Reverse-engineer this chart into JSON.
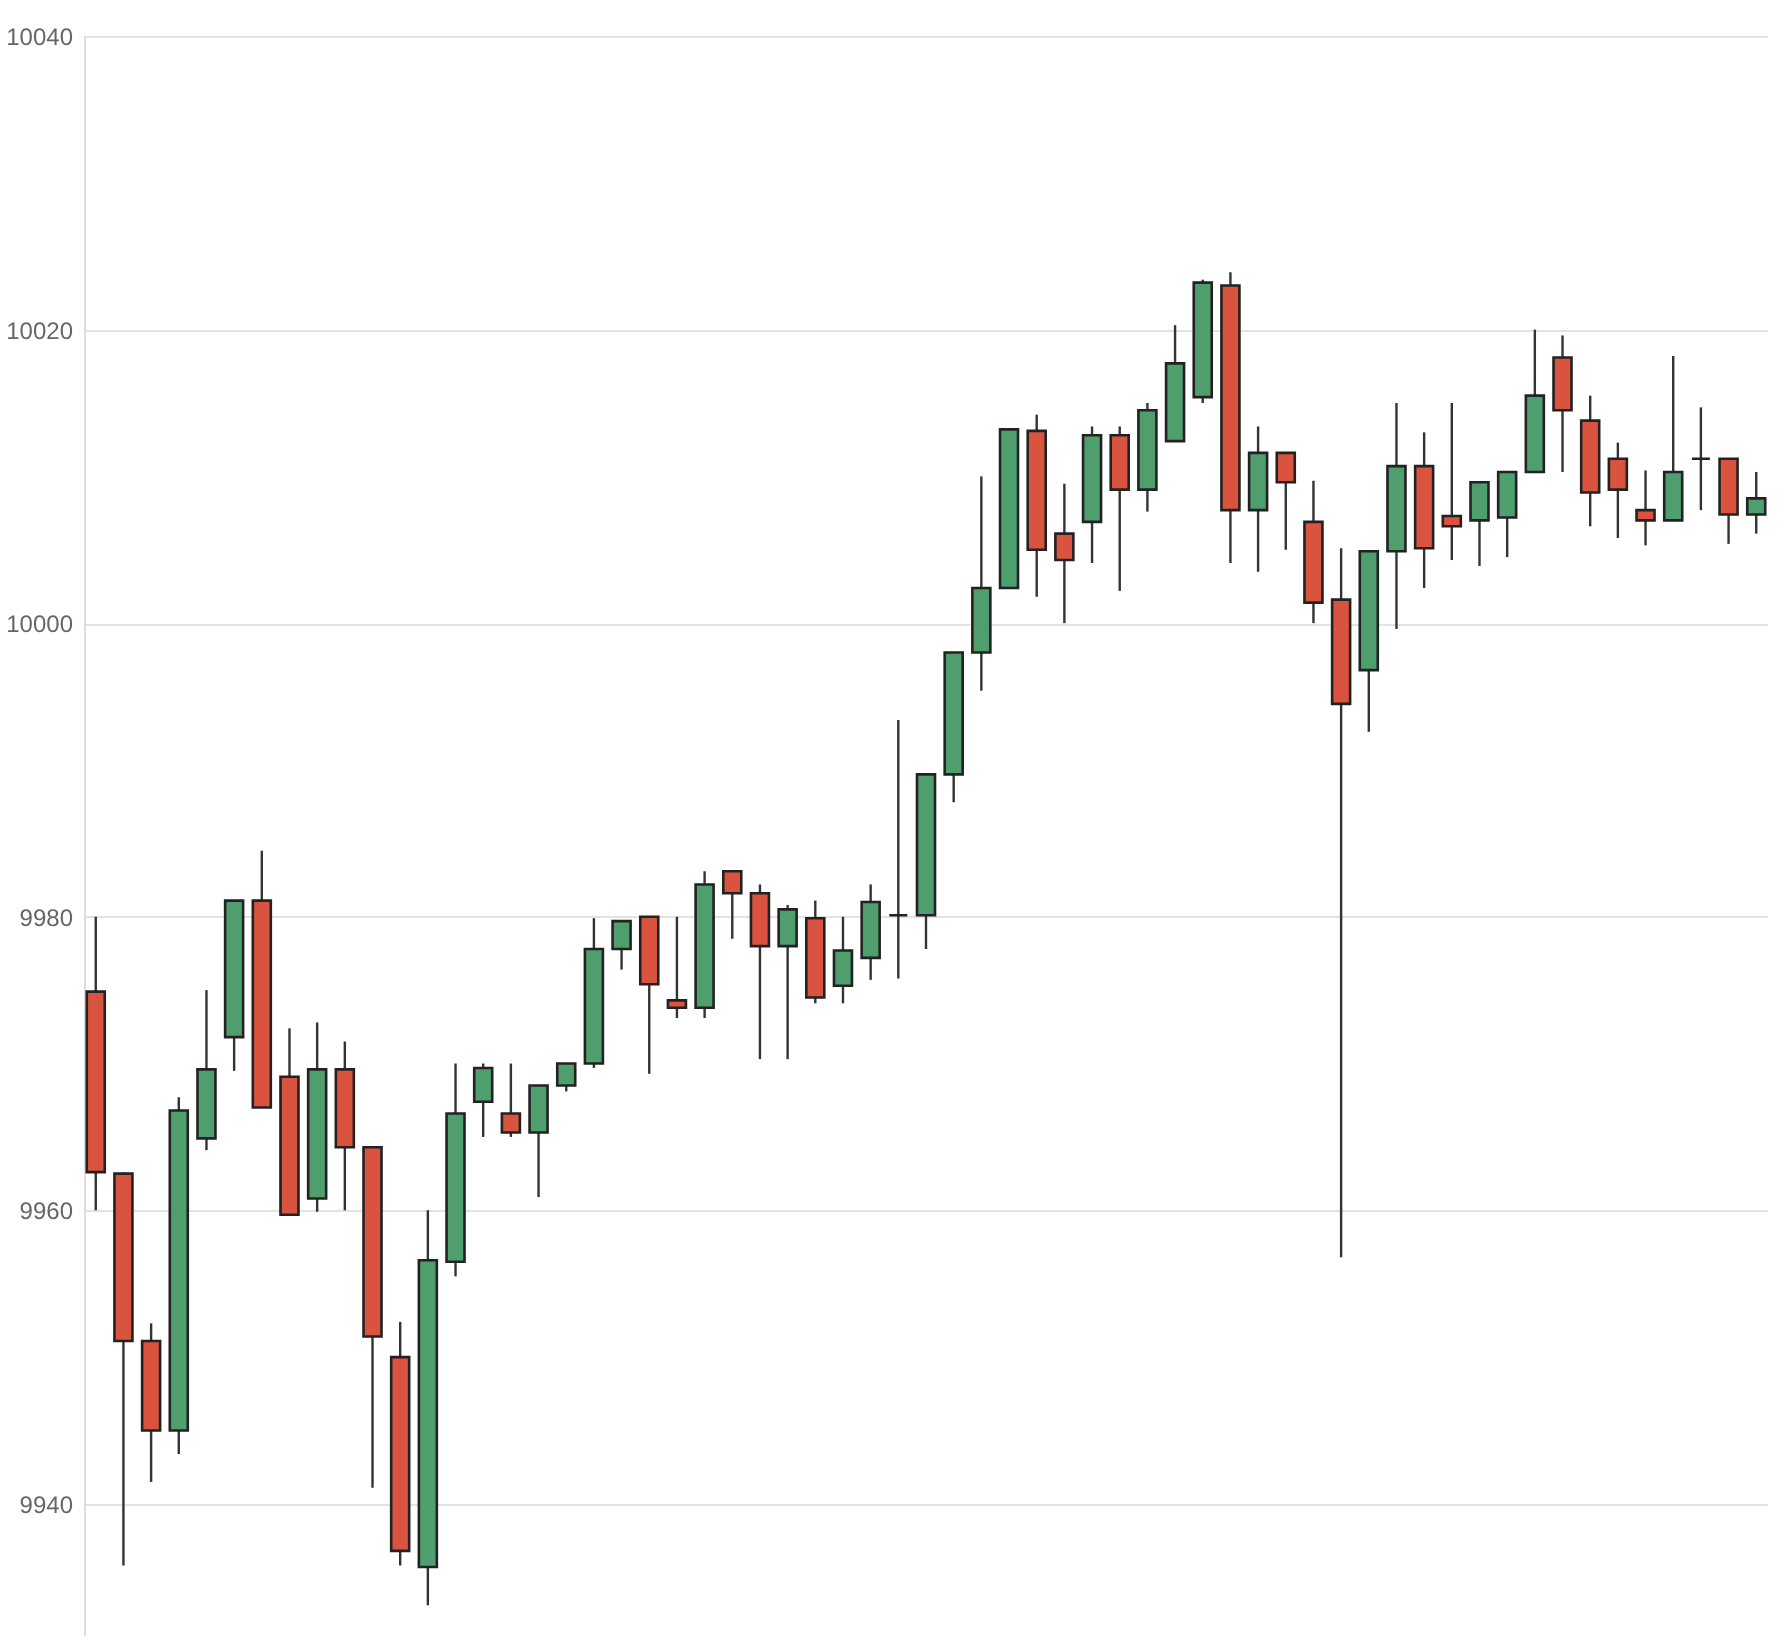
{
  "chart_data": {
    "type": "candlestick",
    "categories": [
      null,
      null,
      null,
      null,
      null,
      null,
      null,
      null,
      null,
      null,
      null,
      null,
      null,
      null,
      null,
      null,
      null,
      null,
      null,
      null,
      null,
      null,
      null,
      null,
      null,
      null,
      null,
      null,
      null,
      null,
      null,
      null,
      null,
      null,
      null,
      null,
      null,
      null,
      null,
      null,
      null,
      null,
      null,
      null,
      null,
      null,
      null,
      null,
      null,
      null,
      null,
      null,
      null,
      null,
      null,
      null,
      null,
      null,
      null,
      null,
      null
    ],
    "ohlc": [
      [
        9974.9,
        9980,
        9960,
        9962.6
      ],
      [
        9962.5,
        9962.6,
        9935.8,
        9951.1
      ],
      [
        9951.1,
        9952.3,
        9941.5,
        9945.0
      ],
      [
        9945.0,
        9967.7,
        9943.4,
        9966.8
      ],
      [
        9964.9,
        9975.0,
        9964.1,
        9969.6
      ],
      [
        9971.8,
        9981.1,
        9969.5,
        9981.1
      ],
      [
        9981.1,
        9984.5,
        9967.0,
        9967.0
      ],
      [
        9969.1,
        9972.4,
        9959.7,
        9959.7
      ],
      [
        9960.8,
        9972.8,
        9959.9,
        9969.6
      ],
      [
        9969.6,
        9971.5,
        9960.0,
        9964.3
      ],
      [
        9964.3,
        9964.3,
        9941.1,
        9951.4
      ],
      [
        9950.0,
        9952.4,
        9935.8,
        9936.8
      ],
      [
        9935.7,
        9960.0,
        9933.1,
        9956.6
      ],
      [
        9956.5,
        9970.0,
        9955.5,
        9966.6
      ],
      [
        9967.4,
        9970.0,
        9965.0,
        9969.7
      ],
      [
        9966.6,
        9970.0,
        9965.0,
        9965.3
      ],
      [
        9965.3,
        9968.5,
        9960.9,
        9968.5
      ],
      [
        9968.5,
        9970.0,
        9968.1,
        9970.0
      ],
      [
        9970.0,
        9979.9,
        9969.7,
        9977.8
      ],
      [
        9977.8,
        9979.7,
        9976.4,
        9979.7
      ],
      [
        9980.0,
        9980.0,
        9969.3,
        9975.4
      ],
      [
        9974.3,
        9980.0,
        9973.1,
        9973.8
      ],
      [
        9973.8,
        9983.1,
        9973.1,
        9982.2
      ],
      [
        9983.1,
        9983.1,
        9978.5,
        9981.6
      ],
      [
        9981.6,
        9982.2,
        9970.3,
        9978.0
      ],
      [
        9978.0,
        9980.8,
        9970.3,
        9980.5
      ],
      [
        9979.9,
        9981.1,
        9974.1,
        9974.5
      ],
      [
        9975.3,
        9980.0,
        9974.1,
        9977.7
      ],
      [
        9977.2,
        9982.2,
        9975.7,
        9981.0
      ],
      [
        9980.1,
        9993.4,
        9975.8,
        9980.1
      ],
      [
        9980.1,
        9989.7,
        9977.8,
        9989.7
      ],
      [
        9989.7,
        9998.0,
        9987.8,
        9998.0
      ],
      [
        9998.0,
        10010.0,
        9995.4,
        10002.4
      ],
      [
        10002.4,
        10013.2,
        10002.4,
        10013.2
      ],
      [
        10013.1,
        10014.2,
        10001.8,
        10005.0
      ],
      [
        10006.1,
        10009.5,
        10000.0,
        10004.3
      ],
      [
        10006.9,
        10013.4,
        10004.1,
        10012.8
      ],
      [
        10012.8,
        10013.4,
        10002.2,
        10009.1
      ],
      [
        10009.1,
        10015.0,
        10007.6,
        10014.5
      ],
      [
        10012.4,
        10020.3,
        10012.4,
        10017.7
      ],
      [
        10015.4,
        10023.4,
        10015.0,
        10023.2
      ],
      [
        10023.0,
        10023.9,
        10004.1,
        10007.7
      ],
      [
        10007.7,
        10013.4,
        10003.5,
        10011.6
      ],
      [
        10011.6,
        10011.6,
        10005.0,
        10009.6
      ],
      [
        10006.9,
        10009.7,
        10000.0,
        10001.4
      ],
      [
        10001.6,
        10005.1,
        9956.8,
        9994.5
      ],
      [
        9996.8,
        10004.9,
        9992.6,
        10004.9
      ],
      [
        10004.9,
        10015.0,
        9999.6,
        10010.7
      ],
      [
        10010.7,
        10013.0,
        10002.4,
        10005.1
      ],
      [
        10007.3,
        10015.0,
        10004.3,
        10006.6
      ],
      [
        10007.0,
        10009.6,
        10003.9,
        10009.6
      ],
      [
        10007.2,
        10010.3,
        10004.5,
        10010.3
      ],
      [
        10010.3,
        10020.0,
        10010.3,
        10015.5
      ],
      [
        10018.1,
        10019.6,
        10010.3,
        10014.5
      ],
      [
        10013.8,
        10015.5,
        10006.6,
        10008.9
      ],
      [
        10011.2,
        10012.3,
        10005.8,
        10009.1
      ],
      [
        10007.7,
        10010.4,
        10005.3,
        10007.0
      ],
      [
        10007.0,
        10018.2,
        10007.0,
        10010.3
      ],
      [
        10011.2,
        10014.7,
        10007.7,
        10011.2
      ],
      [
        10011.2,
        10011.2,
        10005.4,
        10007.4
      ],
      [
        10007.4,
        10010.3,
        10006.1,
        10008.5
      ]
    ],
    "colors": [
      "#d9533e",
      "#d9533e",
      "#d9533e",
      "#4e9e6e",
      "#4e9e6e",
      "#4e9e6e",
      "#d9533e",
      "#d9533e",
      "#4e9e6e",
      "#d9533e",
      "#d9533e",
      "#d9533e",
      "#4e9e6e",
      "#4e9e6e",
      "#4e9e6e",
      "#d9533e",
      "#4e9e6e",
      "#4e9e6e",
      "#4e9e6e",
      "#4e9e6e",
      "#d9533e",
      "#d9533e",
      "#4e9e6e",
      "#d9533e",
      "#d9533e",
      "#4e9e6e",
      "#d9533e",
      "#4e9e6e",
      "#4e9e6e",
      "#222222",
      "#4e9e6e",
      "#4e9e6e",
      "#4e9e6e",
      "#4e9e6e",
      "#d9533e",
      "#d9533e",
      "#4e9e6e",
      "#d9533e",
      "#4e9e6e",
      "#4e9e6e",
      "#4e9e6e",
      "#d9533e",
      "#4e9e6e",
      "#d9533e",
      "#d9533e",
      "#d9533e",
      "#4e9e6e",
      "#4e9e6e",
      "#d9533e",
      "#d9533e",
      "#4e9e6e",
      "#4e9e6e",
      "#4e9e6e",
      "#d9533e",
      "#d9533e",
      "#d9533e",
      "#d9533e",
      "#4e9e6e",
      "#222222",
      "#d9533e",
      "#4e9e6e"
    ],
    "ylim": [
      9931,
      10040
    ],
    "yticks": [
      9940,
      9960,
      9980,
      10000,
      10020,
      10040
    ],
    "grid": "y",
    "tick_labels": "y"
  }
}
